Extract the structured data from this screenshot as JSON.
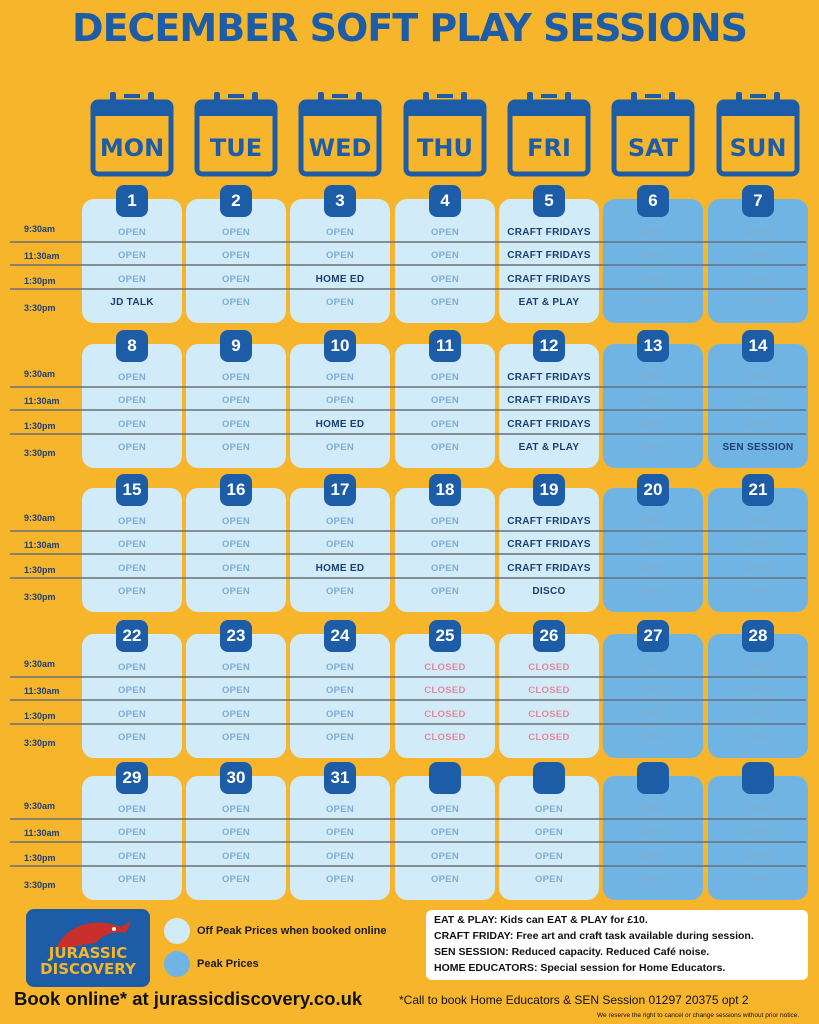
{
  "title": "DECEMBER SOFT PLAY SESSIONS",
  "days": [
    "MON",
    "TUE",
    "WED",
    "THU",
    "FRI",
    "SAT",
    "SUN"
  ],
  "times": [
    "9:30am",
    "11:30am",
    "1:30pm",
    "3:30pm"
  ],
  "colors": {
    "background": "#f7b52c",
    "brand": "#1d5ca6",
    "offpeak": "#d2ebf8",
    "peak": "#6fb4e2"
  },
  "weeks": [
    {
      "days": [
        {
          "date": "1",
          "type": "offpeak",
          "slots": [
            "OPEN",
            "OPEN",
            "OPEN",
            "JD TALK"
          ]
        },
        {
          "date": "2",
          "type": "offpeak",
          "slots": [
            "OPEN",
            "OPEN",
            "OPEN",
            "OPEN"
          ]
        },
        {
          "date": "3",
          "type": "offpeak",
          "slots": [
            "OPEN",
            "OPEN",
            "HOME ED",
            "OPEN"
          ]
        },
        {
          "date": "4",
          "type": "offpeak",
          "slots": [
            "OPEN",
            "OPEN",
            "OPEN",
            "OPEN"
          ]
        },
        {
          "date": "5",
          "type": "offpeak",
          "slots": [
            "CRAFT FRIDAYS",
            "CRAFT FRIDAYS",
            "CRAFT FRIDAYS",
            "EAT & PLAY"
          ]
        },
        {
          "date": "6",
          "type": "peak",
          "slots": [
            "OPEN",
            "OPEN",
            "OPEN",
            "OPEN"
          ]
        },
        {
          "date": "7",
          "type": "peak",
          "slots": [
            "OPEN",
            "OPEN",
            "OPEN",
            "OPEN"
          ]
        }
      ]
    },
    {
      "days": [
        {
          "date": "8",
          "type": "offpeak",
          "slots": [
            "OPEN",
            "OPEN",
            "OPEN",
            "OPEN"
          ]
        },
        {
          "date": "9",
          "type": "offpeak",
          "slots": [
            "OPEN",
            "OPEN",
            "OPEN",
            "OPEN"
          ]
        },
        {
          "date": "10",
          "type": "offpeak",
          "slots": [
            "OPEN",
            "OPEN",
            "HOME ED",
            "OPEN"
          ]
        },
        {
          "date": "11",
          "type": "offpeak",
          "slots": [
            "OPEN",
            "OPEN",
            "OPEN",
            "OPEN"
          ]
        },
        {
          "date": "12",
          "type": "offpeak",
          "slots": [
            "CRAFT FRIDAYS",
            "CRAFT FRIDAYS",
            "CRAFT FRIDAYS",
            "EAT & PLAY"
          ]
        },
        {
          "date": "13",
          "type": "peak",
          "slots": [
            "OPEN",
            "OPEN",
            "OPEN",
            "OPEN"
          ]
        },
        {
          "date": "14",
          "type": "peak",
          "slots": [
            "OPEN",
            "OPEN",
            "OPEN",
            "SEN SESSION"
          ]
        }
      ]
    },
    {
      "days": [
        {
          "date": "15",
          "type": "offpeak",
          "slots": [
            "OPEN",
            "OPEN",
            "OPEN",
            "OPEN"
          ]
        },
        {
          "date": "16",
          "type": "offpeak",
          "slots": [
            "OPEN",
            "OPEN",
            "OPEN",
            "OPEN"
          ]
        },
        {
          "date": "17",
          "type": "offpeak",
          "slots": [
            "OPEN",
            "OPEN",
            "HOME ED",
            "OPEN"
          ]
        },
        {
          "date": "18",
          "type": "offpeak",
          "slots": [
            "OPEN",
            "OPEN",
            "OPEN",
            "OPEN"
          ]
        },
        {
          "date": "19",
          "type": "offpeak",
          "slots": [
            "CRAFT FRIDAYS",
            "CRAFT FRIDAYS",
            "CRAFT FRIDAYS",
            "DISCO"
          ]
        },
        {
          "date": "20",
          "type": "peak",
          "slots": [
            "OPEN",
            "OPEN",
            "OPEN",
            "OPEN"
          ]
        },
        {
          "date": "21",
          "type": "peak",
          "slots": [
            "OPEN",
            "OPEN",
            "OPEN",
            "OPEN"
          ]
        }
      ]
    },
    {
      "days": [
        {
          "date": "22",
          "type": "offpeak",
          "slots": [
            "OPEN",
            "OPEN",
            "OPEN",
            "OPEN"
          ]
        },
        {
          "date": "23",
          "type": "offpeak",
          "slots": [
            "OPEN",
            "OPEN",
            "OPEN",
            "OPEN"
          ]
        },
        {
          "date": "24",
          "type": "offpeak",
          "slots": [
            "OPEN",
            "OPEN",
            "OPEN",
            "OPEN"
          ]
        },
        {
          "date": "25",
          "type": "offpeak",
          "slots": [
            "CLOSED",
            "CLOSED",
            "CLOSED",
            "CLOSED"
          ]
        },
        {
          "date": "26",
          "type": "offpeak",
          "slots": [
            "CLOSED",
            "CLOSED",
            "CLOSED",
            "CLOSED"
          ]
        },
        {
          "date": "27",
          "type": "peak",
          "slots": [
            "OPEN",
            "OPEN",
            "OPEN",
            "OPEN"
          ]
        },
        {
          "date": "28",
          "type": "peak",
          "slots": [
            "OPEN",
            "OPEN",
            "OPEN",
            "OPEN"
          ]
        }
      ]
    },
    {
      "days": [
        {
          "date": "29",
          "type": "offpeak",
          "slots": [
            "OPEN",
            "OPEN",
            "OPEN",
            "OPEN"
          ]
        },
        {
          "date": "30",
          "type": "offpeak",
          "slots": [
            "OPEN",
            "OPEN",
            "OPEN",
            "OPEN"
          ]
        },
        {
          "date": "31",
          "type": "offpeak",
          "slots": [
            "OPEN",
            "OPEN",
            "OPEN",
            "OPEN"
          ]
        },
        {
          "date": "",
          "type": "offpeak",
          "slots": [
            "OPEN",
            "OPEN",
            "OPEN",
            "OPEN"
          ]
        },
        {
          "date": "",
          "type": "offpeak",
          "slots": [
            "OPEN",
            "OPEN",
            "OPEN",
            "OPEN"
          ]
        },
        {
          "date": "",
          "type": "peak",
          "slots": [
            "OPEN",
            "OPEN",
            "OPEN",
            "OPEN"
          ]
        },
        {
          "date": "",
          "type": "peak",
          "slots": [
            "OPEN",
            "OPEN",
            "OPEN",
            "OPEN"
          ]
        }
      ]
    }
  ],
  "logo": {
    "line1": "JURASSIC",
    "line2": "DISCOVERY"
  },
  "legend": {
    "offpeak": "Off Peak Prices when booked online",
    "peak": "Peak Prices"
  },
  "notes": [
    "EAT & PLAY: Kids can EAT & PLAY  for £10.",
    "CRAFT FRIDAY: Free art and craft task available during session.",
    "SEN SESSION: Reduced capacity.  Reduced Café noise.",
    "HOME EDUCATORS: Special session for Home Educators."
  ],
  "footer": {
    "book": "Book online* at jurassicdiscovery.co.uk",
    "call": "*Call to book Home Educators & SEN Session 01297 20375 opt 2",
    "reserve": "We reserve the right to cancel or change sessions without prior notice."
  }
}
